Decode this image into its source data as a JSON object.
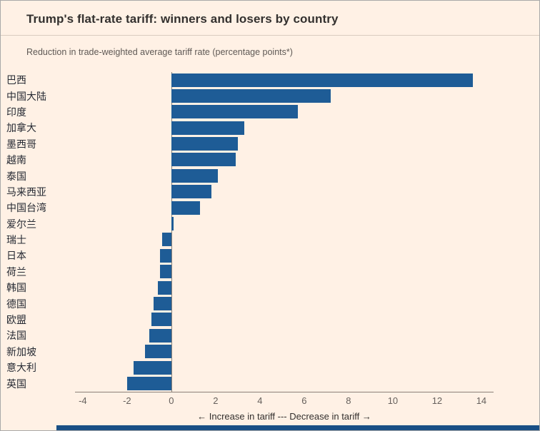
{
  "header": {
    "title": "Trump's flat-rate tariff: winners and losers by country",
    "subtitle": "Reduction in trade-weighted average tariff rate (percentage points*)"
  },
  "chart_data": {
    "type": "bar",
    "orientation": "horizontal",
    "title": "Trump's flat-rate tariff: winners and losers by country",
    "subtitle": "Reduction in trade-weighted average tariff rate (percentage points*)",
    "categories": [
      "巴西",
      "中国大陆",
      "印度",
      "加拿大",
      "墨西哥",
      "越南",
      "泰国",
      "马来西亚",
      "中国台湾",
      "爱尔兰",
      "瑞士",
      "日本",
      "荷兰",
      "韩国",
      "德国",
      "欧盟",
      "法国",
      "新加坡",
      "意大利",
      "英国"
    ],
    "values": [
      13.6,
      7.2,
      5.7,
      3.3,
      3.0,
      2.9,
      2.1,
      1.8,
      1.3,
      0.1,
      -0.4,
      -0.5,
      -0.5,
      -0.6,
      -0.8,
      -0.9,
      -1.0,
      -1.2,
      -1.7,
      -2.0
    ],
    "x_ticks": [
      -4,
      -2,
      0,
      2,
      4,
      6,
      8,
      10,
      12,
      14
    ],
    "x_domain": [
      -4.35,
      14.55
    ],
    "xlabel": "",
    "ylabel": "",
    "grid": false,
    "legend": false,
    "axis_caption": "← Increase in tariff --- Decrease in tariff →",
    "bar_color": "#1e5c96"
  },
  "colors": {
    "background": "#fff1e5",
    "bar": "#1e5c96",
    "footer_strip": "#194f85",
    "title_text": "#33302e",
    "subtitle_text": "#5f5955",
    "axis_text": "#66605c"
  }
}
